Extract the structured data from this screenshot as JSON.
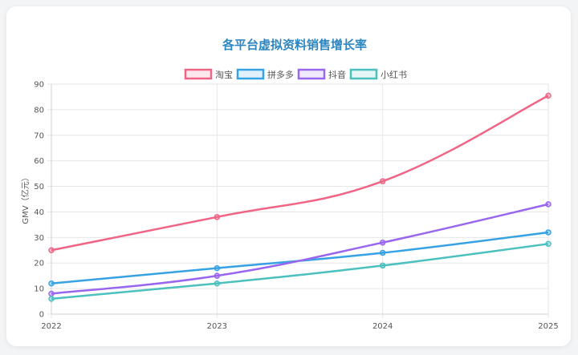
{
  "chart_data": {
    "type": "line",
    "title": "各平台虚拟资料销售增长率",
    "xlabel": "",
    "ylabel": "GMV（亿元）",
    "x": [
      "2022",
      "2023",
      "2024",
      "2025"
    ],
    "ylim": [
      0,
      90
    ],
    "yticks": [
      0,
      10,
      20,
      30,
      40,
      50,
      60,
      70,
      80,
      90
    ],
    "grid": true,
    "legend_position": "top",
    "series": [
      {
        "name": "淘宝",
        "color": "#f06485",
        "values": [
          25,
          38,
          52,
          85.5
        ]
      },
      {
        "name": "拼多多",
        "color": "#36a2e4",
        "values": [
          12,
          18,
          24,
          32
        ]
      },
      {
        "name": "抖音",
        "color": "#9966f0",
        "values": [
          8,
          15,
          28,
          43
        ]
      },
      {
        "name": "小红书",
        "color": "#4cc0bf",
        "values": [
          6,
          12,
          19,
          27.5
        ]
      }
    ]
  }
}
